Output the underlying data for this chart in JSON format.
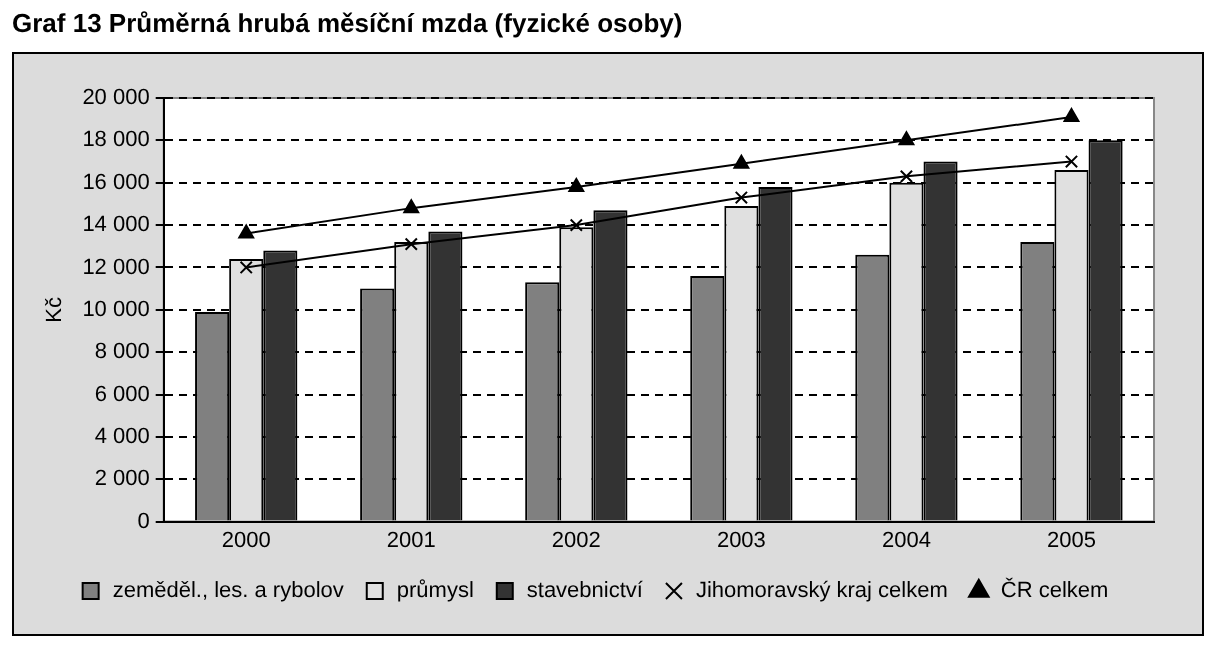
{
  "chart_data": {
    "type": "bar",
    "title": "Graf 13 Průměrná hrubá měsíční mzda (fyzické osoby)",
    "ylabel": "Kč",
    "categories": [
      "2000",
      "2001",
      "2002",
      "2003",
      "2004",
      "2005"
    ],
    "series": [
      {
        "name": "zeměděl., les. a rybolov",
        "color": "#808080",
        "values": [
          9900,
          11000,
          11300,
          11600,
          12600,
          13200
        ]
      },
      {
        "name": "průmysl",
        "color": "#e0e0e0",
        "values": [
          12400,
          13200,
          13900,
          14900,
          16000,
          16600
        ]
      },
      {
        "name": "stavebnictví",
        "color": "#333333",
        "values": [
          12800,
          13700,
          14700,
          15800,
          17000,
          18000
        ]
      },
      {
        "name": "Jihomoravský kraj celkem",
        "type": "line",
        "color": "#000000",
        "marker": "cross",
        "values": [
          12000,
          13100,
          14000,
          15300,
          16300,
          17000
        ]
      },
      {
        "name": "ČR celkem",
        "type": "line",
        "color": "#000000",
        "marker": "triangle",
        "values": [
          13600,
          14800,
          15800,
          16900,
          18000,
          19100
        ]
      }
    ],
    "ylim": [
      0,
      20000
    ],
    "yticks": [
      {
        "value": 0,
        "label": "0"
      },
      {
        "value": 2000,
        "label": "2 000"
      },
      {
        "value": 4000,
        "label": "4 000"
      },
      {
        "value": 6000,
        "label": "6 000"
      },
      {
        "value": 8000,
        "label": "8 000"
      },
      {
        "value": 10000,
        "label": "10 000"
      },
      {
        "value": 12000,
        "label": "12 000"
      },
      {
        "value": 14000,
        "label": "14 000"
      },
      {
        "value": 16000,
        "label": "16 000"
      },
      {
        "value": 18000,
        "label": "18 000"
      },
      {
        "value": 20000,
        "label": "20 000"
      }
    ],
    "grid": "y",
    "legend": "bottom"
  }
}
